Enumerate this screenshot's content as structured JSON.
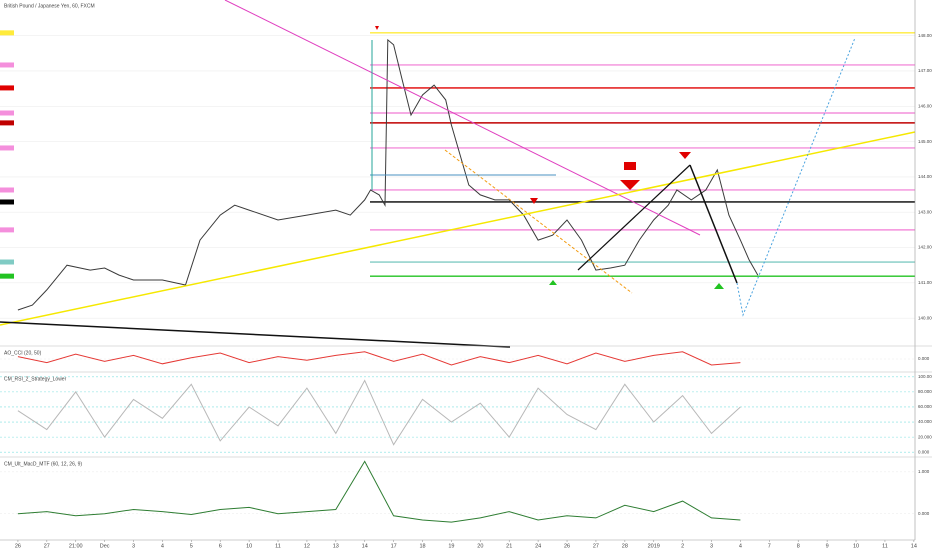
{
  "chart_data": [
    {
      "type": "line",
      "title": "British Pound / Japanese Yen, 60, FXCM",
      "color": "#3a3a3a",
      "x": [
        0,
        0.5,
        1,
        1.7,
        2.5,
        3,
        3.5,
        4,
        5,
        5.8,
        6.3,
        7,
        7.5,
        8,
        9,
        10,
        11,
        11.5,
        12,
        12.2,
        12.5,
        12.7,
        12.8,
        13,
        13.3,
        13.6,
        14,
        14.4,
        14.8,
        15,
        15.3,
        15.6,
        16,
        16.5,
        17,
        17.5,
        18,
        18.5,
        19,
        19.5,
        20,
        20.5,
        21,
        21.5,
        22,
        22.5,
        22.8,
        23.3,
        23.8,
        24.2,
        24.6,
        25,
        25.3,
        25.6
      ],
      "values": [
        140.23,
        140.37,
        140.8,
        141.5,
        141.36,
        141.42,
        141.22,
        141.08,
        141.08,
        140.94,
        142.21,
        142.92,
        143.2,
        143.06,
        142.78,
        142.92,
        143.06,
        142.92,
        143.35,
        143.63,
        143.49,
        143.2,
        147.88,
        147.74,
        146.74,
        145.75,
        146.32,
        146.6,
        146.18,
        145.47,
        144.62,
        143.77,
        143.49,
        143.35,
        143.35,
        142.92,
        142.21,
        142.35,
        142.78,
        142.21,
        141.36,
        141.42,
        141.5,
        142.21,
        142.78,
        143.2,
        143.63,
        143.35,
        143.63,
        144.2,
        142.92,
        142.21,
        141.65,
        141.22
      ],
      "ylim": [
        139.24,
        149.01
      ],
      "yticks": [
        {
          "value": 140,
          "label": "140.000"
        },
        {
          "value": 141,
          "label": "141.000"
        },
        {
          "value": 142,
          "label": "142.000"
        },
        {
          "value": 143,
          "label": "143.000"
        },
        {
          "value": 144,
          "label": "144.000"
        },
        {
          "value": 145,
          "label": "145.000"
        },
        {
          "value": 146,
          "label": "146.000"
        },
        {
          "value": 147,
          "label": "147.000"
        },
        {
          "value": 148,
          "label": "148.000"
        }
      ],
      "xlim": [
        -0.62,
        31.04
      ],
      "xticks": [
        {
          "value": 0,
          "label": "26"
        },
        {
          "value": 1,
          "label": "27"
        },
        {
          "value": 2,
          "label": "21:00"
        },
        {
          "value": 3,
          "label": "Dec"
        },
        {
          "value": 4,
          "label": "3"
        },
        {
          "value": 5,
          "label": "4"
        },
        {
          "value": 6,
          "label": "5"
        },
        {
          "value": 7,
          "label": "6"
        },
        {
          "value": 8,
          "label": "10"
        },
        {
          "value": 9,
          "label": "11"
        },
        {
          "value": 10,
          "label": "12"
        },
        {
          "value": 11,
          "label": "13"
        },
        {
          "value": 12,
          "label": "14"
        },
        {
          "value": 13,
          "label": "17"
        },
        {
          "value": 14,
          "label": "18"
        },
        {
          "value": 15,
          "label": "19"
        },
        {
          "value": 16,
          "label": "20"
        },
        {
          "value": 17,
          "label": "21"
        },
        {
          "value": 18,
          "label": "24"
        },
        {
          "value": 19,
          "label": "26"
        },
        {
          "value": 20,
          "label": "27"
        },
        {
          "value": 21,
          "label": "28"
        },
        {
          "value": 22,
          "label": "2019"
        },
        {
          "value": 23,
          "label": "2"
        },
        {
          "value": 24,
          "label": "3"
        },
        {
          "value": 25,
          "label": "4"
        },
        {
          "value": 26,
          "label": "7"
        },
        {
          "value": 27,
          "label": "8"
        },
        {
          "value": 28,
          "label": "9"
        },
        {
          "value": 29,
          "label": "10"
        },
        {
          "value": 30,
          "label": "11"
        },
        {
          "value": 31,
          "label": "14"
        }
      ],
      "levels": [
        {
          "value": 148.08,
          "color": "#ffeb3b"
        },
        {
          "value": 147.17,
          "color": "#f48fdc"
        },
        {
          "value": 146.52,
          "color": "#e00000"
        },
        {
          "value": 145.81,
          "color": "#f48fdc"
        },
        {
          "value": 145.53,
          "color": "#c00000"
        },
        {
          "value": 144.82,
          "color": "#f48fdc"
        },
        {
          "value": 143.63,
          "color": "#f48fdc"
        },
        {
          "value": 143.29,
          "color": "#000000"
        },
        {
          "value": 142.5,
          "color": "#f48fdc"
        },
        {
          "value": 141.59,
          "color": "#80cbc4"
        },
        {
          "value": 141.19,
          "color": "#22c322"
        }
      ],
      "grid": true
    },
    {
      "type": "line",
      "title": "AO_CCI (20, 50)",
      "color": "#e53935",
      "x": [
        0,
        1,
        2,
        3,
        4,
        5,
        6,
        7,
        8,
        9,
        10,
        11,
        12,
        13,
        14,
        15,
        16,
        17,
        18,
        19,
        20,
        21,
        22,
        23,
        24,
        25
      ],
      "values": [
        0.2,
        -0.3,
        0.4,
        -0.2,
        0.3,
        -0.4,
        0.1,
        0.5,
        -0.3,
        0.2,
        -0.1,
        0.3,
        0.6,
        -0.2,
        0.4,
        -0.5,
        0.2,
        -0.3,
        0.3,
        -0.4,
        0.5,
        -0.2,
        0.3,
        0.6,
        -0.5,
        -0.3
      ],
      "ylim": [
        -1,
        1
      ],
      "yticks": [
        {
          "value": 0,
          "label": "0.000"
        }
      ],
      "grid": true
    },
    {
      "type": "line",
      "title": "CM_RSI_2_Strategy_Lower",
      "color": "#b8b8b8",
      "x": [
        0,
        1,
        2,
        3,
        4,
        5,
        6,
        7,
        8,
        9,
        10,
        11,
        12,
        13,
        14,
        15,
        16,
        17,
        18,
        19,
        20,
        21,
        22,
        23,
        24,
        25
      ],
      "values": [
        55,
        30,
        80,
        20,
        70,
        45,
        90,
        15,
        60,
        35,
        85,
        25,
        95,
        10,
        70,
        40,
        65,
        20,
        85,
        50,
        30,
        90,
        40,
        75,
        25,
        60
      ],
      "ylim": [
        -5,
        105
      ],
      "yticks": [
        {
          "value": 0,
          "label": "0.000"
        },
        {
          "value": 20,
          "label": "20.000"
        },
        {
          "value": 40,
          "label": "40.000"
        },
        {
          "value": 60,
          "label": "60.000"
        },
        {
          "value": 80,
          "label": "80.000"
        },
        {
          "value": 100,
          "label": "100.000"
        }
      ],
      "grid": true
    },
    {
      "type": "line",
      "title": "CM_Ult_MacD_MTF (60, 12, 26, 9)",
      "color": "#2e7d32",
      "x": [
        0,
        1,
        2,
        3,
        4,
        5,
        6,
        7,
        8,
        9,
        10,
        11,
        12,
        13,
        14,
        15,
        16,
        17,
        18,
        19,
        20,
        21,
        22,
        23,
        24,
        25
      ],
      "values": [
        0,
        0.05,
        -0.05,
        0,
        0.1,
        0.05,
        -0.02,
        0.1,
        0.15,
        0,
        0.05,
        0.1,
        1.25,
        -0.05,
        -0.15,
        -0.2,
        -0.1,
        0.05,
        -0.15,
        -0.05,
        -0.1,
        0.2,
        0.05,
        0.3,
        -0.1,
        -0.15
      ],
      "ylim": [
        -0.58,
        1.33
      ],
      "yticks": [
        {
          "value": 0,
          "label": "0.000"
        },
        {
          "value": 1,
          "label": "1.000"
        }
      ],
      "grid": true
    }
  ]
}
